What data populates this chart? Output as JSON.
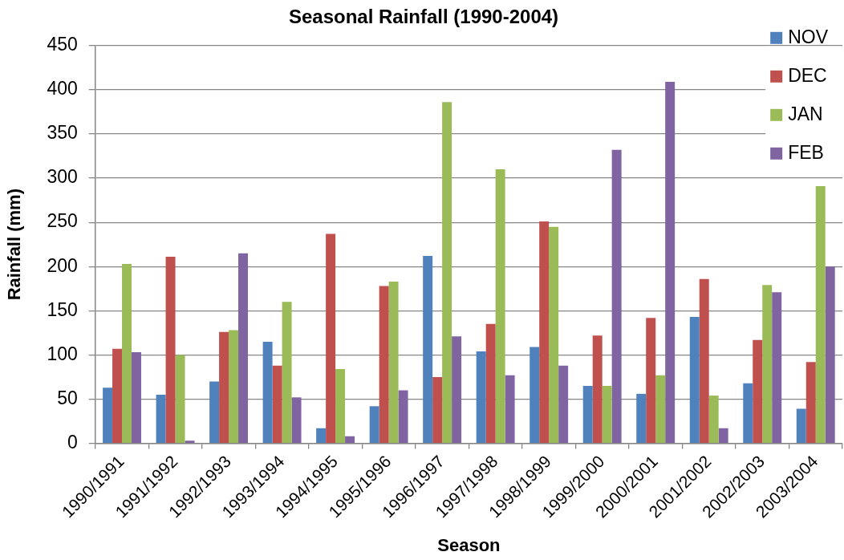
{
  "chart_data": {
    "type": "bar",
    "title": "Seasonal Rainfall (1990-2004)",
    "xlabel": "Season",
    "ylabel": "Rainfall (mm)",
    "categories": [
      "1990/1991",
      "1991/1992",
      "1992/1993",
      "1993/1994",
      "1994/1995",
      "1995/1996",
      "1996/1997",
      "1997/1998",
      "1998/1999",
      "1999/2000",
      "2000/2001",
      "2001/2002",
      "2002/2003",
      "2003/2004"
    ],
    "series": [
      {
        "name": "NOV",
        "color": "#4f81bd",
        "values": [
          63,
          55,
          70,
          115,
          17,
          42,
          212,
          104,
          109,
          65,
          56,
          143,
          68,
          39
        ]
      },
      {
        "name": "DEC",
        "color": "#c0504d",
        "values": [
          107,
          211,
          126,
          88,
          237,
          178,
          75,
          135,
          251,
          122,
          142,
          186,
          117,
          92
        ]
      },
      {
        "name": "JAN",
        "color": "#9bbb59",
        "values": [
          203,
          100,
          128,
          160,
          84,
          183,
          386,
          310,
          245,
          65,
          77,
          54,
          179,
          291
        ]
      },
      {
        "name": "FEB",
        "color": "#8064a2",
        "values": [
          103,
          3,
          215,
          52,
          8,
          60,
          121,
          77,
          88,
          332,
          409,
          17,
          171,
          200
        ]
      }
    ],
    "ylim": [
      0,
      450
    ],
    "yticks": [
      0,
      50,
      100,
      150,
      200,
      250,
      300,
      350,
      400,
      450
    ],
    "grid": "y",
    "legend": "top right"
  }
}
